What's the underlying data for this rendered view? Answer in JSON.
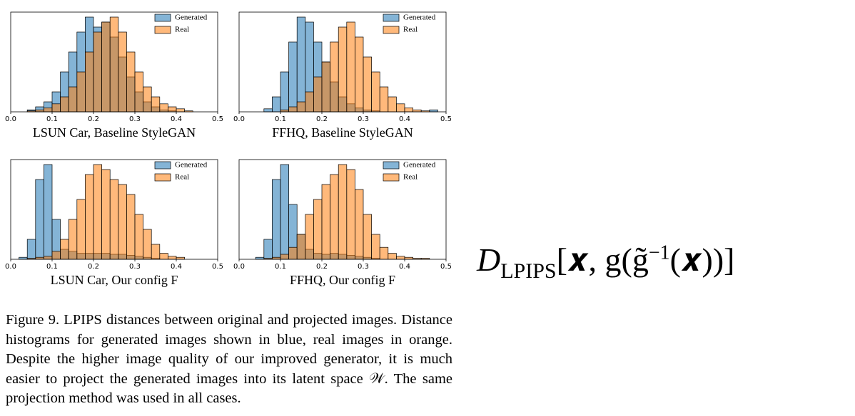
{
  "chart_data": [
    {
      "type": "histogram",
      "title": "LSUN Car, Baseline StyleGAN",
      "bins": [
        0.02,
        0.04,
        0.06,
        0.08,
        0.1,
        0.12,
        0.14,
        0.16,
        0.18,
        0.2,
        0.22,
        0.24,
        0.26,
        0.28,
        0.3,
        0.32,
        0.34,
        0.36,
        0.38,
        0.4,
        0.42,
        0.44,
        0.46,
        0.48
      ],
      "series": [
        {
          "name": "Generated",
          "color": "#1f77b4",
          "values": [
            0,
            2,
            5,
            10,
            20,
            40,
            60,
            80,
            95,
            85,
            90,
            75,
            55,
            35,
            20,
            10,
            5,
            2,
            1,
            0,
            0,
            0,
            0
          ]
        },
        {
          "name": "Real",
          "color": "#ff7f0e",
          "values": [
            0,
            1,
            2,
            4,
            8,
            15,
            25,
            40,
            60,
            80,
            90,
            95,
            80,
            60,
            40,
            25,
            15,
            8,
            5,
            3,
            1,
            0,
            0
          ]
        }
      ],
      "xlim": [
        0,
        0.5
      ],
      "xticks": [
        {
          "value": 0,
          "label": "0.0"
        },
        0.1,
        0.2,
        0.3,
        0.4,
        0.5
      ],
      "ylim": [
        0,
        100
      ],
      "legend": "upper right"
    },
    {
      "type": "histogram",
      "title": "FFHQ, Baseline StyleGAN",
      "bins": [
        0.02,
        0.04,
        0.06,
        0.08,
        0.1,
        0.12,
        0.14,
        0.16,
        0.18,
        0.2,
        0.22,
        0.24,
        0.26,
        0.28,
        0.3,
        0.32,
        0.34,
        0.36,
        0.38,
        0.4,
        0.42,
        0.44,
        0.46,
        0.48
      ],
      "series": [
        {
          "name": "Generated",
          "color": "#1f77b4",
          "values": [
            0,
            0,
            3,
            15,
            40,
            70,
            95,
            90,
            70,
            50,
            30,
            15,
            8,
            4,
            2,
            1,
            0,
            0,
            0,
            0,
            0,
            0,
            2
          ]
        },
        {
          "name": "Real",
          "color": "#ff7f0e",
          "values": [
            0,
            0,
            0,
            0,
            2,
            5,
            10,
            20,
            35,
            50,
            70,
            85,
            90,
            75,
            55,
            40,
            25,
            15,
            8,
            4,
            2,
            1,
            0
          ]
        }
      ],
      "xlim": [
        0,
        0.5
      ],
      "xticks": [
        {
          "value": 0,
          "label": "0.0"
        },
        0.1,
        0.2,
        0.3,
        0.4,
        0.5
      ],
      "ylim": [
        0,
        100
      ],
      "legend": "upper right"
    },
    {
      "type": "histogram",
      "title": "LSUN Car, Our config F",
      "bins": [
        0.02,
        0.04,
        0.06,
        0.08,
        0.1,
        0.12,
        0.14,
        0.16,
        0.18,
        0.2,
        0.22,
        0.24,
        0.26,
        0.28,
        0.3,
        0.32,
        0.34,
        0.36,
        0.38,
        0.4,
        0.42,
        0.44,
        0.46,
        0.48
      ],
      "series": [
        {
          "name": "Generated",
          "color": "#1f77b4",
          "values": [
            2,
            20,
            80,
            95,
            40,
            10,
            8,
            6,
            6,
            6,
            6,
            5,
            5,
            4,
            3,
            2,
            1,
            0,
            0,
            0,
            0,
            0,
            0
          ]
        },
        {
          "name": "Real",
          "color": "#ff7f0e",
          "values": [
            0,
            1,
            2,
            3,
            8,
            20,
            40,
            60,
            85,
            95,
            90,
            80,
            75,
            65,
            45,
            30,
            15,
            6,
            3,
            2,
            0,
            0,
            0
          ]
        }
      ],
      "xlim": [
        0,
        0.5
      ],
      "xticks": [
        {
          "value": 0,
          "label": "0.0"
        },
        0.1,
        0.2,
        0.3,
        0.4,
        0.5
      ],
      "ylim": [
        0,
        100
      ],
      "legend": "upper right"
    },
    {
      "type": "histogram",
      "title": "FFHQ, Our config F",
      "bins": [
        0.02,
        0.04,
        0.06,
        0.08,
        0.1,
        0.12,
        0.14,
        0.16,
        0.18,
        0.2,
        0.22,
        0.24,
        0.26,
        0.28,
        0.3,
        0.32,
        0.34,
        0.36,
        0.38,
        0.4,
        0.42,
        0.44,
        0.46,
        0.48
      ],
      "series": [
        {
          "name": "Generated",
          "color": "#1f77b4",
          "values": [
            0,
            2,
            20,
            80,
            95,
            55,
            25,
            10,
            6,
            5,
            6,
            5,
            4,
            3,
            2,
            1,
            0,
            0,
            0,
            0,
            0,
            0,
            0
          ]
        },
        {
          "name": "Real",
          "color": "#ff7f0e",
          "values": [
            0,
            0,
            1,
            2,
            5,
            12,
            25,
            45,
            60,
            75,
            85,
            95,
            90,
            70,
            45,
            25,
            12,
            6,
            3,
            2,
            1,
            1,
            0
          ]
        }
      ],
      "xlim": [
        0,
        0.5
      ],
      "xticks": [
        {
          "value": 0,
          "label": "0.0"
        },
        0.1,
        0.2,
        0.3,
        0.4,
        0.5
      ],
      "ylim": [
        0,
        100
      ],
      "legend": "upper right"
    }
  ],
  "caption": "Figure 9. LPIPS distances between original and projected images. Distance histograms for generated images shown in blue, real images in orange. Despite the higher image quality of our improved generator, it is much easier to project the generated images into its latent space 𝒲. The same projection method was used in all cases.",
  "formula": {
    "base": "D",
    "subscript": "LPIPS",
    "body": "[𝒙, g(g̃",
    "superscript": "−1",
    "tail": "(𝒙))]"
  }
}
